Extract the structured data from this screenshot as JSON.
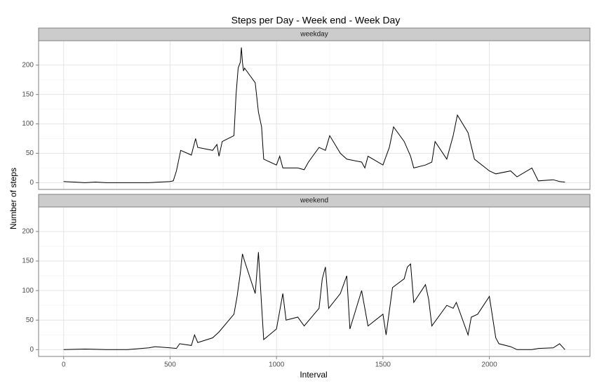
{
  "chart_data": {
    "type": "line",
    "title": "Steps per Day - Week end - Week Day",
    "xlabel": "Interval",
    "ylabel": "Number of steps",
    "xlim": [
      -117.75,
      2472.75
    ],
    "xticks": [
      0,
      500,
      1000,
      1500,
      2000
    ],
    "ylim": [
      -11.5,
      241.5
    ],
    "yticks": [
      0,
      50,
      100,
      150,
      200
    ],
    "grid": true,
    "series": [
      {
        "name": "weekday",
        "color": "#000000",
        "x": [
          0,
          50,
          100,
          150,
          200,
          300,
          400,
          450,
          500,
          515,
          530,
          550,
          600,
          620,
          630,
          700,
          720,
          730,
          745,
          800,
          810,
          820,
          830,
          835,
          840,
          845,
          850,
          900,
          915,
          930,
          940,
          1000,
          1015,
          1030,
          1100,
          1130,
          1150,
          1200,
          1230,
          1250,
          1300,
          1330,
          1400,
          1415,
          1430,
          1500,
          1515,
          1530,
          1550,
          1600,
          1630,
          1645,
          1700,
          1730,
          1745,
          1800,
          1830,
          1850,
          1900,
          1930,
          2000,
          2030,
          2100,
          2130,
          2200,
          2230,
          2300,
          2330,
          2355
        ],
        "values": [
          2,
          1,
          0,
          1,
          0,
          0,
          0,
          1,
          2,
          3,
          20,
          55,
          47,
          75,
          60,
          55,
          65,
          45,
          70,
          80,
          150,
          195,
          205,
          230,
          205,
          190,
          195,
          170,
          120,
          95,
          40,
          30,
          45,
          25,
          25,
          22,
          35,
          60,
          55,
          80,
          50,
          40,
          35,
          25,
          45,
          30,
          45,
          60,
          95,
          70,
          45,
          25,
          30,
          35,
          70,
          40,
          80,
          115,
          85,
          40,
          20,
          15,
          20,
          10,
          25,
          3,
          5,
          2,
          1
        ]
      },
      {
        "name": "weekend",
        "color": "#000000",
        "x": [
          0,
          100,
          200,
          300,
          400,
          430,
          500,
          530,
          545,
          600,
          615,
          630,
          700,
          730,
          800,
          815,
          830,
          840,
          850,
          900,
          910,
          915,
          930,
          940,
          1000,
          1030,
          1045,
          1100,
          1130,
          1200,
          1215,
          1230,
          1245,
          1300,
          1330,
          1345,
          1400,
          1430,
          1500,
          1515,
          1545,
          1600,
          1615,
          1630,
          1645,
          1700,
          1715,
          1730,
          1800,
          1830,
          1845,
          1900,
          1915,
          1945,
          2000,
          2030,
          2045,
          2100,
          2130,
          2200,
          2230,
          2300,
          2330,
          2355
        ],
        "values": [
          0,
          1,
          0,
          0,
          3,
          5,
          3,
          2,
          10,
          7,
          25,
          12,
          20,
          30,
          60,
          90,
          130,
          162,
          150,
          95,
          140,
          165,
          75,
          17,
          35,
          95,
          50,
          55,
          40,
          70,
          120,
          140,
          70,
          95,
          125,
          35,
          100,
          40,
          60,
          25,
          105,
          120,
          140,
          145,
          80,
          110,
          85,
          40,
          75,
          70,
          80,
          25,
          55,
          60,
          90,
          20,
          10,
          5,
          0,
          0,
          2,
          3,
          10,
          0
        ]
      }
    ]
  }
}
